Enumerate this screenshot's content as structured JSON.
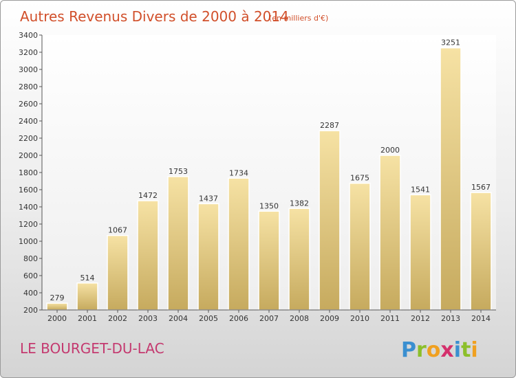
{
  "header": {
    "title": "Autres Revenus Divers de 2000 à 2014",
    "subtitle": "(en milliers d'€)"
  },
  "footer": {
    "location": "LE BOURGET-DU-LAC",
    "logo_letters": [
      "P",
      "r",
      "o",
      "x",
      "i",
      "t",
      "i"
    ],
    "logo_colors": [
      "#3a8fd0",
      "#8cbf2a",
      "#f0a020",
      "#d4306c",
      "#3a8fd0",
      "#8cbf2a",
      "#f0a020"
    ]
  },
  "chart_data": {
    "type": "bar",
    "title": "Autres Revenus Divers de 2000 à 2014",
    "subtitle": "(en milliers d'€)",
    "categories": [
      "2000",
      "2001",
      "2002",
      "2003",
      "2004",
      "2005",
      "2006",
      "2007",
      "2008",
      "2009",
      "2010",
      "2011",
      "2012",
      "2013",
      "2014"
    ],
    "values": [
      279,
      514,
      1067,
      1472,
      1753,
      1437,
      1734,
      1350,
      1382,
      2287,
      1675,
      2000,
      1541,
      3251,
      1567
    ],
    "ylim": [
      200,
      3400
    ],
    "yticks": [
      200,
      400,
      600,
      800,
      1000,
      1200,
      1400,
      1600,
      1800,
      2000,
      2200,
      2400,
      2600,
      2800,
      3000,
      3200,
      3400
    ],
    "grid": false,
    "bar_color": "#e8cf86"
  }
}
